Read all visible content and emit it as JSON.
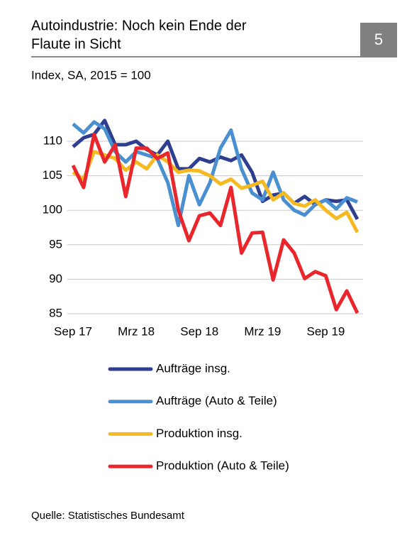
{
  "chart_data": {
    "type": "line",
    "title": [
      "Autoindustrie: Noch kein Ende der",
      "Flaute in Sicht"
    ],
    "badge": "5",
    "subtitle": "Index, SA, 2015 = 100",
    "source": "Quelle: Statistisches Bundesamt",
    "categories": [
      "Sep 17",
      null,
      null,
      null,
      null,
      null,
      "Mrz 18",
      null,
      null,
      null,
      null,
      null,
      "Sep 18",
      null,
      null,
      null,
      null,
      null,
      "Mrz 19",
      null,
      null,
      null,
      null,
      null,
      "Sep 19",
      null,
      null,
      null
    ],
    "ylim": [
      85,
      113
    ],
    "yticks": [
      85,
      90,
      95,
      100,
      105,
      110
    ],
    "grid": true,
    "legend": "bottom",
    "series": [
      {
        "name": "Aufträge insg.",
        "color": "#2e3f8f",
        "values": [
          109.2,
          110.5,
          111,
          113,
          109.5,
          109.5,
          110,
          108.8,
          108,
          110,
          106,
          106,
          107.5,
          107,
          107.7,
          107.2,
          108,
          105.5,
          101.3,
          102.2,
          102.5,
          101,
          102,
          100.8,
          101.5,
          101.3,
          101.5,
          98.7
        ]
      },
      {
        "name": "Aufträge (Auto & Teile)",
        "color": "#4a90d0",
        "values": [
          112.5,
          111.2,
          112.8,
          111.8,
          108.5,
          107,
          108.5,
          108,
          107.5,
          104,
          97.8,
          105,
          100.8,
          104,
          109,
          111.6,
          106,
          102.5,
          101.5,
          105.5,
          101.5,
          100,
          99.3,
          100.8,
          101.5,
          100.2,
          101.8,
          101.2
        ]
      },
      {
        "name": "Produktion insg.",
        "color": "#f5b922",
        "values": [
          105.5,
          104.5,
          108.5,
          108,
          107.5,
          105.8,
          107,
          106,
          108,
          107,
          105.5,
          105.8,
          105.7,
          105,
          103.8,
          104.5,
          103.2,
          103.6,
          104.2,
          101.5,
          102.5,
          101,
          100.6,
          101.5,
          100,
          98.8,
          99.7,
          96.8
        ]
      },
      {
        "name": "Produktion (Auto & Teile)",
        "color": "#e8262b",
        "values": [
          106.5,
          103.3,
          111,
          107,
          109.5,
          102,
          109,
          109,
          107.5,
          108.3,
          100,
          95.6,
          99.2,
          99.6,
          97.8,
          103.3,
          93.8,
          96.7,
          96.8,
          89.9,
          95.7,
          93.8,
          90.1,
          91.1,
          90.5,
          85.6,
          88.3,
          85.1
        ]
      }
    ]
  }
}
